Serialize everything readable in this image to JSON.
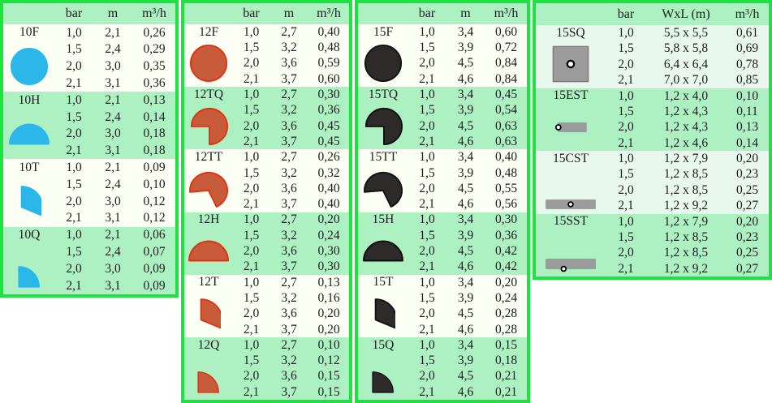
{
  "colors": {
    "panel_border": "#1de33e",
    "band_green": "#adf1c3",
    "row_white": "#fcfff4",
    "row_pale_green": "#e9f8ec",
    "text": "#1c1c1c",
    "icon_cyan": "#2bb7e9",
    "icon_orange_fill": "#c75b3a",
    "icon_orange_stroke": "#e03414",
    "icon_black_fill": "#2d2b2a",
    "icon_black_stroke": "#111111",
    "icon_gray_fill": "#9b9b9b",
    "icon_gray_stroke": "#7a7a7a"
  },
  "panels": [
    {
      "name": "10-series",
      "columns": [
        "bar",
        "m",
        "m³/h"
      ],
      "icon_fill": "#2bb7e9",
      "icon_stroke": "#2bb7e9",
      "light_row": "#fcfff4",
      "groups": [
        {
          "model": "10F",
          "icon": "full-circle",
          "rows": [
            [
              "1,0",
              "2,1",
              "0,26"
            ],
            [
              "1,5",
              "2,4",
              "0,29"
            ],
            [
              "2,0",
              "3,0",
              "0,35"
            ],
            [
              "2,1",
              "3,1",
              "0,36"
            ]
          ]
        },
        {
          "model": "10H",
          "icon": "half-circle",
          "rows": [
            [
              "1,0",
              "2,1",
              "0,13"
            ],
            [
              "1,5",
              "2,4",
              "0,14"
            ],
            [
              "2,0",
              "3,0",
              "0,18"
            ],
            [
              "2,1",
              "3,1",
              "0,18"
            ]
          ]
        },
        {
          "model": "10T",
          "icon": "third-circle",
          "rows": [
            [
              "1,0",
              "2,1",
              "0,09"
            ],
            [
              "1,5",
              "2,4",
              "0,10"
            ],
            [
              "2,0",
              "3,0",
              "0,12"
            ],
            [
              "2,1",
              "3,1",
              "0,12"
            ]
          ]
        },
        {
          "model": "10Q",
          "icon": "quarter-circle",
          "rows": [
            [
              "1,0",
              "2,1",
              "0,06"
            ],
            [
              "1,5",
              "2,4",
              "0,07"
            ],
            [
              "2,0",
              "3,0",
              "0,09"
            ],
            [
              "2,1",
              "3,1",
              "0,09"
            ]
          ]
        }
      ]
    },
    {
      "name": "12-series",
      "columns": [
        "bar",
        "m",
        "m³/h"
      ],
      "icon_fill": "#c75b3a",
      "icon_stroke": "#e03414",
      "light_row": "#fcfff4",
      "groups": [
        {
          "model": "12F",
          "icon": "full-circle",
          "rows": [
            [
              "1,0",
              "2,7",
              "0,40"
            ],
            [
              "1,5",
              "3,2",
              "0,48"
            ],
            [
              "2,0",
              "3,6",
              "0,59"
            ],
            [
              "2,1",
              "3,7",
              "0,60"
            ]
          ]
        },
        {
          "model": "12TQ",
          "icon": "three-quarter-circle",
          "rows": [
            [
              "1,0",
              "2,7",
              "0,30"
            ],
            [
              "1,5",
              "3,2",
              "0,36"
            ],
            [
              "2,0",
              "3,6",
              "0,45"
            ],
            [
              "2,1",
              "3,7",
              "0,45"
            ]
          ]
        },
        {
          "model": "12TT",
          "icon": "two-third-circle",
          "rows": [
            [
              "1,0",
              "2,7",
              "0,26"
            ],
            [
              "1,5",
              "3,2",
              "0,32"
            ],
            [
              "2,0",
              "3,6",
              "0,40"
            ],
            [
              "2,1",
              "3,7",
              "0,40"
            ]
          ]
        },
        {
          "model": "12H",
          "icon": "half-circle",
          "rows": [
            [
              "1,0",
              "2,7",
              "0,20"
            ],
            [
              "1,5",
              "3,2",
              "0,24"
            ],
            [
              "2,0",
              "3,6",
              "0,30"
            ],
            [
              "2,1",
              "3,7",
              "0,30"
            ]
          ]
        },
        {
          "model": "12T",
          "icon": "third-circle",
          "rows": [
            [
              "1,0",
              "2,7",
              "0,13"
            ],
            [
              "1,5",
              "3,2",
              "0,16"
            ],
            [
              "2,0",
              "3,6",
              "0,20"
            ],
            [
              "2,1",
              "3,7",
              "0,20"
            ]
          ]
        },
        {
          "model": "12Q",
          "icon": "quarter-circle",
          "rows": [
            [
              "1,0",
              "2,7",
              "0,10"
            ],
            [
              "1,5",
              "3,2",
              "0,12"
            ],
            [
              "2,0",
              "3,6",
              "0,15"
            ],
            [
              "2,1",
              "3,7",
              "0,15"
            ]
          ]
        }
      ]
    },
    {
      "name": "15-series",
      "columns": [
        "bar",
        "m",
        "m³/h"
      ],
      "icon_fill": "#2d2b2a",
      "icon_stroke": "#111111",
      "light_row": "#fcfff4",
      "groups": [
        {
          "model": "15F",
          "icon": "full-circle",
          "rows": [
            [
              "1,0",
              "3,4",
              "0,60"
            ],
            [
              "1,5",
              "3,9",
              "0,72"
            ],
            [
              "2,0",
              "4,5",
              "0,84"
            ],
            [
              "2,1",
              "4,6",
              "0,84"
            ]
          ]
        },
        {
          "model": "15TQ",
          "icon": "three-quarter-circle",
          "rows": [
            [
              "1,0",
              "3,4",
              "0,45"
            ],
            [
              "1,5",
              "3,9",
              "0,54"
            ],
            [
              "2,0",
              "4,5",
              "0,63"
            ],
            [
              "2,1",
              "4,6",
              "0,63"
            ]
          ]
        },
        {
          "model": "15TT",
          "icon": "two-third-circle",
          "rows": [
            [
              "1,0",
              "3,4",
              "0,40"
            ],
            [
              "1,5",
              "3,9",
              "0,48"
            ],
            [
              "2,0",
              "4,5",
              "0,55"
            ],
            [
              "2,1",
              "4,6",
              "0,56"
            ]
          ]
        },
        {
          "model": "15H",
          "icon": "half-circle",
          "rows": [
            [
              "1,0",
              "3,4",
              "0,30"
            ],
            [
              "1,5",
              "3,9",
              "0,36"
            ],
            [
              "2,0",
              "4,5",
              "0,42"
            ],
            [
              "2,1",
              "4,6",
              "0,42"
            ]
          ]
        },
        {
          "model": "15T",
          "icon": "third-circle",
          "rows": [
            [
              "1,0",
              "3,4",
              "0,20"
            ],
            [
              "1,5",
              "3,9",
              "0,24"
            ],
            [
              "2,0",
              "4,5",
              "0,28"
            ],
            [
              "2,1",
              "4,6",
              "0,28"
            ]
          ]
        },
        {
          "model": "15Q",
          "icon": "quarter-circle",
          "rows": [
            [
              "1,0",
              "3,4",
              "0,15"
            ],
            [
              "1,5",
              "3,9",
              "0,18"
            ],
            [
              "2,0",
              "4,5",
              "0,21"
            ],
            [
              "2,1",
              "4,6",
              "0,21"
            ]
          ]
        }
      ]
    },
    {
      "name": "15-strip-series",
      "columns": [
        "bar",
        "WxL (m)",
        "m³/h"
      ],
      "icon_fill": "#9b9b9b",
      "icon_stroke": "#7a7a7a",
      "light_row": "#e9f8ec",
      "groups": [
        {
          "model": "15SQ",
          "icon": "square-dot",
          "rows": [
            [
              "1,0",
              "5,5 x 5,5",
              "0,61"
            ],
            [
              "1,5",
              "5,8 x 5,8",
              "0,69"
            ],
            [
              "2,0",
              "6,4 x 6,4",
              "0,78"
            ],
            [
              "2,1",
              "7,0 x 7,0",
              "0,85"
            ]
          ]
        },
        {
          "model": "15EST",
          "icon": "end-strip-dot",
          "rows": [
            [
              "1,0",
              "1,2 x 4,0",
              "0,10"
            ],
            [
              "1,5",
              "1,2 x 4,3",
              "0,11"
            ],
            [
              "2,0",
              "1,2 x 4,3",
              "0,13"
            ],
            [
              "2,1",
              "1,2 x 4,6",
              "0,14"
            ]
          ]
        },
        {
          "model": "15CST",
          "icon": "center-strip-dot",
          "rows": [
            [
              "1,0",
              "1,2 x 7,9",
              "0,20"
            ],
            [
              "1,5",
              "1,2 x 8,5",
              "0,23"
            ],
            [
              "2,0",
              "1,2 x 8,5",
              "0,25"
            ],
            [
              "2,1",
              "1,2 x 9,2",
              "0,27"
            ]
          ]
        },
        {
          "model": "15SST",
          "icon": "bottom-strip-dot",
          "rows": [
            [
              "1,0",
              "1,2 x 7,9",
              "0,20"
            ],
            [
              "1,5",
              "1,2 x 8,5",
              "0,23"
            ],
            [
              "2,0",
              "1,2 x 8,5",
              "0,25"
            ],
            [
              "2,1",
              "1,2 x 9,2",
              "0,27"
            ]
          ]
        }
      ]
    }
  ]
}
